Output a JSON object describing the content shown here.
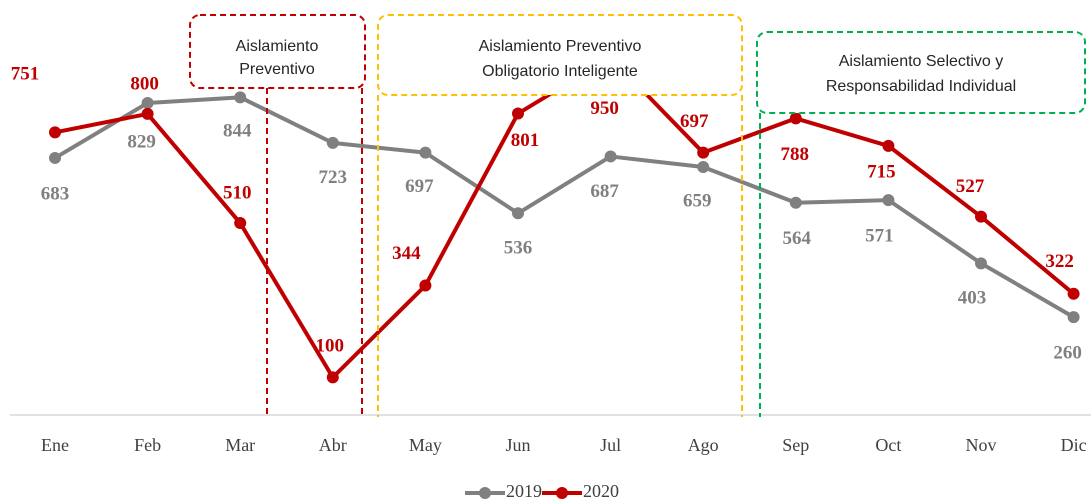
{
  "chart_data": {
    "type": "line",
    "categories": [
      "Ene",
      "Feb",
      "Mar",
      "Abr",
      "May",
      "Jun",
      "Jul",
      "Ago",
      "Sep",
      "Oct",
      "Nov",
      "Dic"
    ],
    "series": [
      {
        "name": "2019",
        "color": "#808080",
        "values": [
          683,
          829,
          844,
          723,
          697,
          536,
          687,
          659,
          564,
          571,
          403,
          260
        ]
      },
      {
        "name": "2020",
        "color": "#c00000",
        "values": [
          751,
          800,
          510,
          100,
          344,
          801,
          950,
          697,
          788,
          715,
          527,
          322
        ]
      }
    ],
    "ylim": [
      0,
      1100
    ],
    "legend": "bottom",
    "annotations": [
      {
        "lines": [
          "Aislamiento",
          "Preventivo"
        ],
        "color": "#c00000"
      },
      {
        "lines": [
          "Aislamiento Preventivo",
          "Obligatorio Inteligente"
        ],
        "color": "#ffc000"
      },
      {
        "lines": [
          "Aislamiento Selectivo y",
          "Responsabilidad Individual"
        ],
        "color": "#00b050"
      }
    ]
  }
}
